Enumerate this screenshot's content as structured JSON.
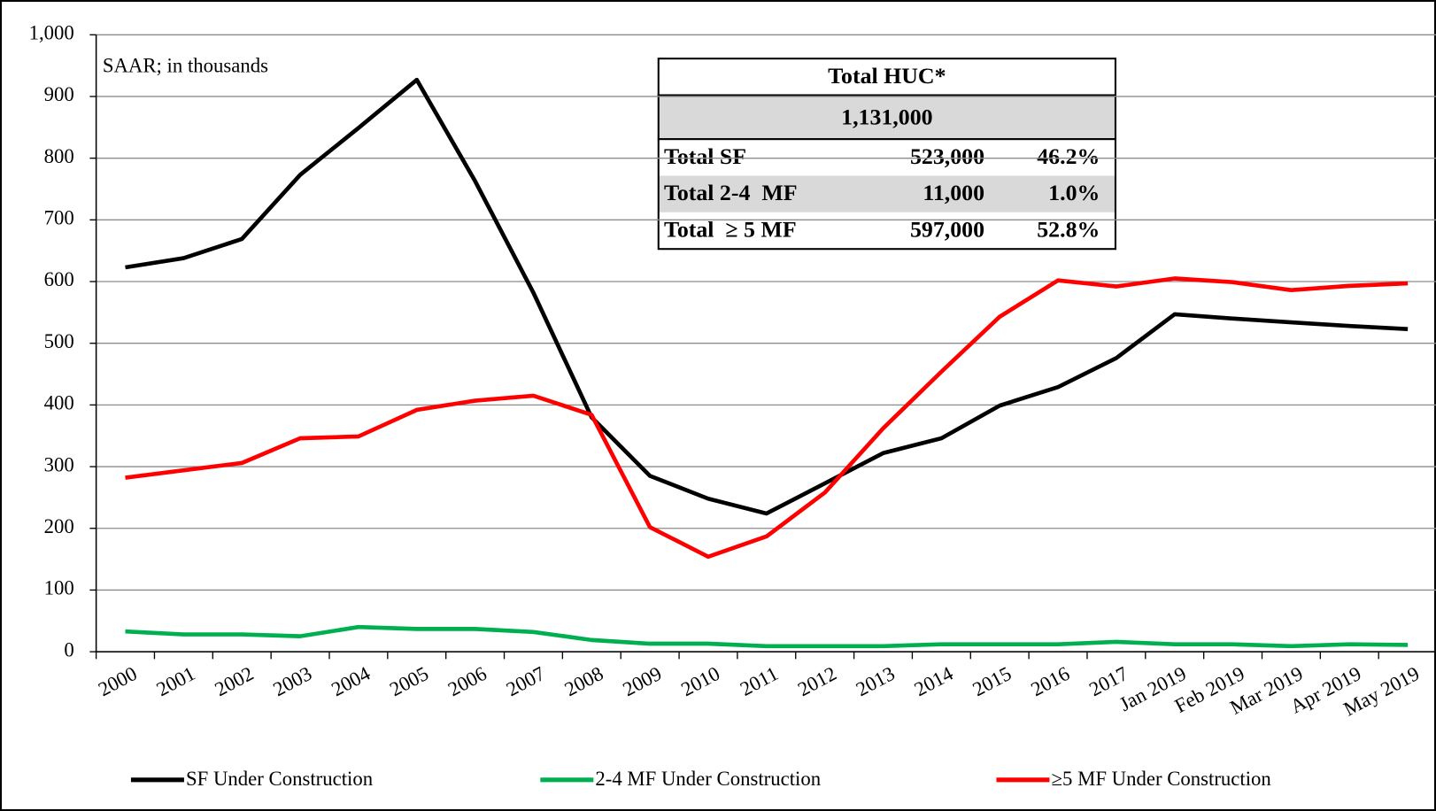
{
  "chart_data": {
    "type": "line",
    "annotation": "SAAR; in thousands",
    "categories": [
      "2000",
      "2001",
      "2002",
      "2003",
      "2004",
      "2005",
      "2006",
      "2007",
      "2008",
      "2009",
      "2010",
      "2011",
      "2012",
      "2013",
      "2014",
      "2015",
      "2016",
      "2017",
      "Jan 2019",
      "Feb 2019",
      "Mar 2019",
      "Apr 2019",
      "May 2019"
    ],
    "series": [
      {
        "name": "SF Under Construction",
        "color": "#000000",
        "values": [
          623,
          638,
          669,
          773,
          849,
          927,
          763,
          582,
          380,
          285,
          248,
          224,
          273,
          322,
          346,
          399,
          429,
          476,
          547,
          540,
          534,
          528,
          523
        ]
      },
      {
        "name": "2-4 MF Under Construction",
        "color": "#00b050",
        "values": [
          33,
          28,
          28,
          25,
          40,
          37,
          37,
          32,
          19,
          13,
          13,
          9,
          9,
          9,
          12,
          12,
          12,
          16,
          12,
          12,
          9,
          12,
          11
        ]
      },
      {
        "name": "≥5 MF Under Construction",
        "color": "#ff0000",
        "values": [
          282,
          294,
          306,
          346,
          349,
          392,
          407,
          415,
          384,
          202,
          154,
          187,
          258,
          362,
          454,
          543,
          602,
          592,
          605,
          599,
          586,
          593,
          597
        ]
      }
    ],
    "ylim": [
      0,
      1000
    ],
    "yticks": [
      0,
      100,
      200,
      300,
      400,
      500,
      600,
      700,
      800,
      900,
      {
        "value": 1000,
        "label": "1,000"
      }
    ],
    "grid": true,
    "legend": "bottom",
    "table": {
      "title": "Total HUC*",
      "total": "1,131,000",
      "rows": [
        [
          "Total SF",
          "523,000",
          "46.2%"
        ],
        [
          "Total 2-4  MF",
          "11,000",
          "1.0%"
        ],
        [
          "Total  ≥ 5 MF",
          "597,000",
          "52.8%"
        ]
      ]
    }
  }
}
